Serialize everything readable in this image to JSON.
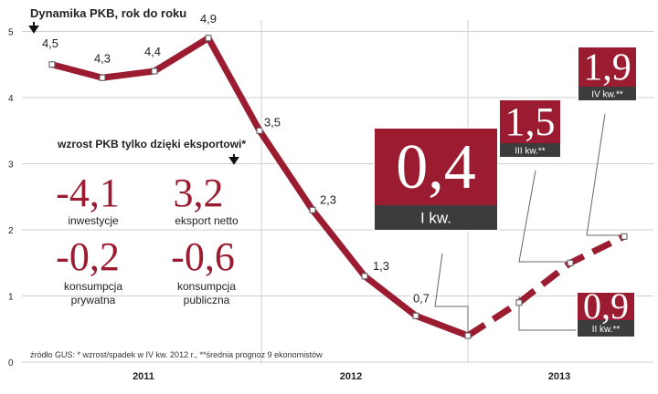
{
  "chart_data": {
    "type": "line",
    "title": "Dynamika PKB, rok do roku",
    "xlabel": "",
    "ylabel": "",
    "ylim": [
      0,
      5
    ],
    "yticks": [
      "0",
      "1",
      "2",
      "3",
      "4",
      "5"
    ],
    "year_labels": [
      "2011",
      "2012",
      "2013"
    ],
    "series": [
      {
        "name": "Dynamika PKB (dane GUS)",
        "style": "solid",
        "values": [
          4.5,
          4.3,
          4.4,
          4.9,
          3.5,
          2.3,
          1.3,
          0.7,
          0.4
        ],
        "labels": [
          "4,5",
          "4,3",
          "4,4",
          "4,9",
          "3,5",
          "2,3",
          "1,3",
          "0,7",
          ""
        ]
      },
      {
        "name": "Średnia prognoz 9 ekonomistów",
        "style": "dashed",
        "values": [
          0.4,
          0.9,
          1.5,
          1.9
        ]
      }
    ],
    "forecast_callouts": [
      {
        "value": "0,4",
        "label": "I kw.",
        "point_index": 0
      },
      {
        "value": "0,9",
        "label": "II kw.**",
        "point_index": 1
      },
      {
        "value": "1,5",
        "label": "III kw.**",
        "point_index": 2
      },
      {
        "value": "1,9",
        "label": "IV kw.**",
        "point_index": 3
      }
    ],
    "exports_panel": {
      "heading": "wzrost PKB tylko dzięki eksportowi*",
      "items": [
        {
          "value": "-4,1",
          "label_lines": [
            "inwestycje"
          ]
        },
        {
          "value": "3,2",
          "label_lines": [
            "eksport netto"
          ]
        },
        {
          "value": "-0,2",
          "label_lines": [
            "konsumpcja",
            "prywatna"
          ]
        },
        {
          "value": "-0,6",
          "label_lines": [
            "konsumpcja",
            "publiczna"
          ]
        }
      ]
    },
    "source_note": "źródło GUS:  * wzrost/spadek w IV kw. 2012 r.,  **średnia prognoz 9 ekonomistów",
    "colors": {
      "line": "#9b1b30",
      "box": "#9b1b30",
      "box_label": "#3c3c3c",
      "grid": "#cfcfcf",
      "text": "#222222"
    }
  }
}
